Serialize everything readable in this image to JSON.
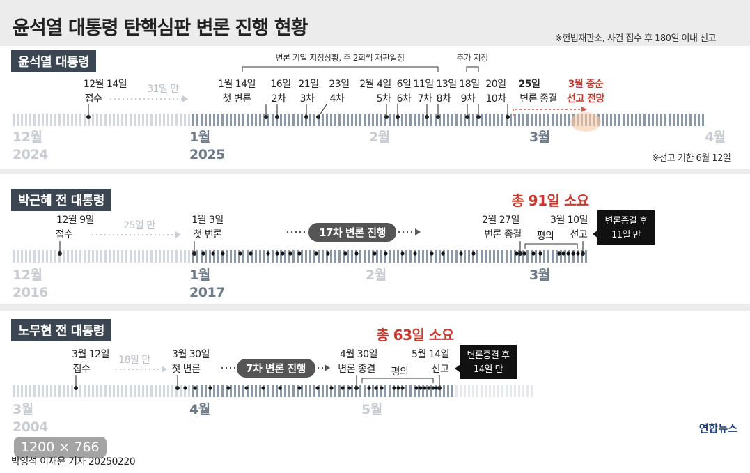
{
  "title": "윤석열 대통령 탄핵심판 변론 진행 현황",
  "note_top": "※헌법재판소, 사건 접수 후 180일 이내 선고",
  "note_deadline": "※선고 기한 6월 12일",
  "panel1": {
    "label": "윤석열 대통령",
    "bracket_label": "변론 기일 지정상황, 주 2회씩 재판일정",
    "extra_label": "추가 지정",
    "gap_label": "31일 만",
    "events": [
      {
        "date": "12월 14일",
        "desc": "접수"
      },
      {
        "date": "1월 14일",
        "desc": "첫 변론"
      },
      {
        "date": "16일",
        "desc": "2차"
      },
      {
        "date": "21일",
        "desc": "3차"
      },
      {
        "date": "23일",
        "desc": "4차"
      },
      {
        "date": "2월 4일",
        "desc": "5차"
      },
      {
        "date": "6일",
        "desc": "6차"
      },
      {
        "date": "11일",
        "desc": "7차"
      },
      {
        "date": "13일",
        "desc": "8차"
      },
      {
        "date": "18일",
        "desc": "9차"
      },
      {
        "date": "20일",
        "desc": "10차"
      },
      {
        "date": "25일",
        "desc": "변론 종결"
      }
    ],
    "forecast": {
      "line1": "3월 중순",
      "line2": "선고 전망"
    },
    "months": [
      {
        "m": "12월",
        "y": "2024"
      },
      {
        "m": "1월",
        "y": "2025"
      },
      {
        "m": "2월",
        "y": ""
      },
      {
        "m": "3월",
        "y": ""
      },
      {
        "m": "4월",
        "y": ""
      }
    ]
  },
  "panel2": {
    "label": "박근혜 전 대통령",
    "total": "총 91일 소요",
    "gap_label": "25일 만",
    "pill": "17차 변론 진행",
    "deliberation": "평의",
    "events": [
      {
        "date": "12월 9일",
        "desc": "접수"
      },
      {
        "date": "1월 3일",
        "desc": "첫 변론"
      },
      {
        "date": "2월 27일",
        "desc": "변론 종결"
      },
      {
        "date": "3월 10일",
        "desc": "선고"
      }
    ],
    "callout": {
      "line1": "변론종결 후",
      "line2": "11일 만"
    },
    "months": [
      {
        "m": "12월",
        "y": "2016"
      },
      {
        "m": "1월",
        "y": "2017"
      },
      {
        "m": "2월",
        "y": ""
      },
      {
        "m": "3월",
        "y": ""
      }
    ]
  },
  "panel3": {
    "label": "노무현 전 대통령",
    "total": "총 63일 소요",
    "gap_label": "18일 만",
    "pill": "7차 변론 진행",
    "deliberation": "평의",
    "events": [
      {
        "date": "3월 12일",
        "desc": "접수"
      },
      {
        "date": "3월 30일",
        "desc": "첫 변론"
      },
      {
        "date": "4월 30일",
        "desc": "변론 종결"
      },
      {
        "date": "5월 14일",
        "desc": "선고"
      }
    ],
    "callout": {
      "line1": "변론종결 후",
      "line2": "14일 만"
    },
    "months": [
      {
        "m": "3월",
        "y": "2004"
      },
      {
        "m": "4월",
        "y": ""
      },
      {
        "m": "5월",
        "y": ""
      }
    ]
  },
  "overlay": "1200 × 766",
  "credit": "박영석 이재윤 기자  20250220",
  "logo": "연합뉴스"
}
